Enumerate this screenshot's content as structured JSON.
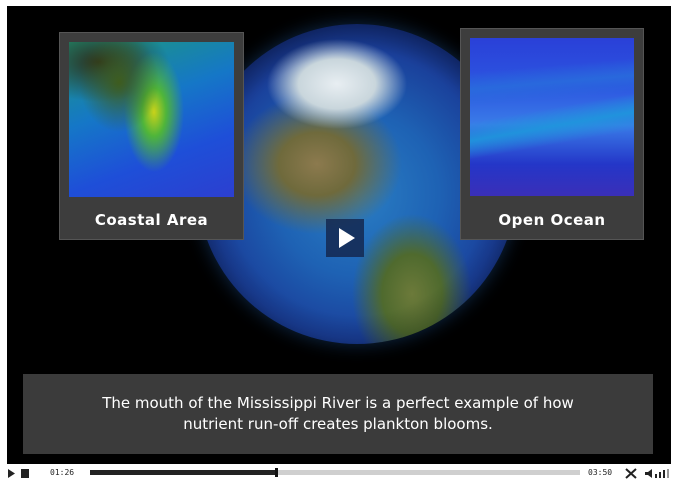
{
  "video": {
    "panels": {
      "left_caption": "Coastal Area",
      "right_caption": "Open Ocean"
    },
    "faint_watermark": [
      "",
      ""
    ],
    "subtitle_line1": "The mouth of the Mississippi River is a perfect example of how",
    "subtitle_line2": "nutrient run-off creates plankton blooms.",
    "play_icon": "play-icon"
  },
  "controls": {
    "current_time": "01:26",
    "total_time": "03:50",
    "progress_fraction": 0.38,
    "icons": [
      "play-icon",
      "stop-icon",
      "fullscreen-icon",
      "volume-icon"
    ]
  },
  "colors": {
    "background": "#000000",
    "panel": "#3d3d3d",
    "subtitle_box": "#3b3b3b",
    "text": "#ffffff"
  }
}
